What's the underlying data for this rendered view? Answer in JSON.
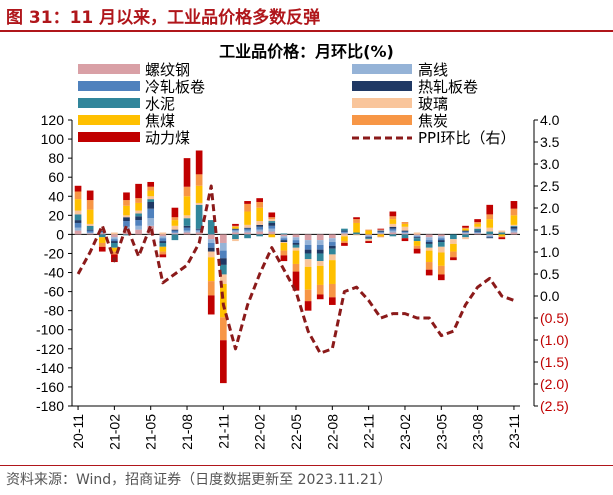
{
  "figure_title": "图 31：11 月以来，工业品价格多数反弹",
  "source_note": "资料来源：Wind，招商证券（日度数据更新至 2023.11.21）",
  "colors": {
    "header_red": "#b0161b",
    "ppi_line": "#8b1a1a",
    "neg_right_axis_text": "#c00000"
  },
  "chart_data": {
    "type": "bar",
    "stacked": true,
    "title": "工业品价格：月环比(%)",
    "x_tick_labels": [
      "20-11",
      "21-02",
      "21-05",
      "21-08",
      "21-11",
      "22-02",
      "22-05",
      "22-08",
      "22-11",
      "23-02",
      "23-05",
      "23-08",
      "23-11"
    ],
    "x_months": [
      "20-11",
      "20-12",
      "21-01",
      "21-02",
      "21-03",
      "21-04",
      "21-05",
      "21-06",
      "21-07",
      "21-08",
      "21-09",
      "21-10",
      "21-11",
      "21-12",
      "22-01",
      "22-02",
      "22-03",
      "22-04",
      "22-05",
      "22-06",
      "22-07",
      "22-08",
      "22-09",
      "22-10",
      "22-11",
      "22-12",
      "23-01",
      "23-02",
      "23-03",
      "23-04",
      "23-05",
      "23-06",
      "23-07",
      "23-08",
      "23-09",
      "23-10",
      "23-11"
    ],
    "y_left": {
      "min": -180,
      "max": 120,
      "step": 20,
      "ticks": [
        "120",
        "100",
        "80",
        "60",
        "40",
        "20",
        "0",
        "-20",
        "-40",
        "-60",
        "-80",
        "-100",
        "-120",
        "-140",
        "-160",
        "-180"
      ]
    },
    "y_right": {
      "min": -2.5,
      "max": 4.0,
      "step": 0.5,
      "ticks": [
        "4.0",
        "3.5",
        "3.0",
        "2.5",
        "2.0",
        "1.5",
        "1.0",
        "0.5",
        "0.0",
        "(0.5)",
        "(1.0)",
        "(1.5)",
        "(2.0)",
        "(2.5)"
      ]
    },
    "legend": {
      "rebar": "螺纹钢",
      "wire": "高线",
      "coldroll": "冷轧板卷",
      "hotroll": "热轧板卷",
      "cement": "水泥",
      "glass": "玻璃",
      "coke": "焦煤",
      "coking": "焦炭",
      "thermal": "动力煤",
      "ppi": "PPI环比（右）"
    },
    "series": [
      {
        "key": "rebar",
        "name": "螺纹钢",
        "color": "#d9a0a6",
        "values": [
          4,
          1,
          1,
          -3,
          4,
          5,
          9,
          -2,
          1,
          2,
          2,
          -5,
          -9,
          2,
          2,
          3,
          3,
          -2,
          -3,
          -6,
          -6,
          -4,
          1,
          0,
          -1,
          1,
          2,
          1,
          -1,
          -3,
          -2,
          0,
          1,
          1,
          -1,
          0,
          2
        ]
      },
      {
        "key": "wire",
        "name": "高线",
        "color": "#95b3d7",
        "values": [
          3,
          1,
          1,
          -2,
          4,
          4,
          8,
          -2,
          1,
          2,
          2,
          -4,
          -8,
          2,
          2,
          2,
          3,
          -2,
          -3,
          -5,
          -5,
          -4,
          1,
          0,
          -1,
          1,
          2,
          1,
          -1,
          -3,
          -2,
          0,
          1,
          1,
          -1,
          0,
          2
        ]
      },
      {
        "key": "coldroll",
        "name": "冷轧板卷",
        "color": "#4f81bd",
        "values": [
          5,
          2,
          1,
          -2,
          6,
          6,
          10,
          -3,
          2,
          3,
          1,
          -5,
          -8,
          1,
          2,
          3,
          3,
          -2,
          -3,
          -5,
          -5,
          -4,
          1,
          0,
          -1,
          1,
          2,
          1,
          -1,
          -2,
          -2,
          0,
          1,
          1,
          -1,
          0,
          2
        ]
      },
      {
        "key": "hotroll",
        "name": "热轧板卷",
        "color": "#1f3864",
        "values": [
          3,
          1,
          1,
          -2,
          4,
          4,
          7,
          -2,
          1,
          2,
          1,
          -4,
          -7,
          1,
          1,
          2,
          3,
          -2,
          -2,
          -4,
          -4,
          -3,
          1,
          0,
          -1,
          1,
          2,
          1,
          -1,
          -2,
          -2,
          0,
          1,
          1,
          -1,
          0,
          2
        ]
      },
      {
        "key": "cement",
        "name": "水泥",
        "color": "#31869b",
        "values": [
          6,
          4,
          -3,
          -5,
          -1,
          3,
          3,
          -4,
          -6,
          8,
          25,
          15,
          -10,
          -5,
          -4,
          -2,
          2,
          1,
          -3,
          -6,
          -8,
          -6,
          2,
          2,
          -1,
          0,
          -2,
          -4,
          -3,
          -4,
          -5,
          -5,
          -3,
          2,
          3,
          2,
          1
        ]
      },
      {
        "key": "glass",
        "name": "玻璃",
        "color": "#f9c59b",
        "values": [
          4,
          2,
          1,
          2,
          2,
          3,
          3,
          2,
          4,
          3,
          2,
          -6,
          -10,
          -2,
          3,
          4,
          2,
          -1,
          -3,
          -8,
          -5,
          -6,
          -2,
          -1,
          -2,
          1,
          3,
          4,
          2,
          -3,
          -6,
          -5,
          -2,
          2,
          4,
          2,
          1
        ]
      },
      {
        "key": "coke",
        "name": "焦煤",
        "color": "#ffc000",
        "values": [
          12,
          15,
          -6,
          -4,
          10,
          8,
          6,
          -5,
          6,
          20,
          18,
          -25,
          -35,
          2,
          14,
          14,
          -3,
          -8,
          -14,
          -24,
          -20,
          -25,
          -5,
          10,
          4,
          -2,
          5,
          3,
          -5,
          -12,
          -14,
          -8,
          2,
          3,
          9,
          -2,
          10
        ]
      },
      {
        "key": "coking",
        "name": "焦炭",
        "color": "#f79646",
        "values": [
          8,
          10,
          -4,
          -3,
          6,
          5,
          4,
          -3,
          3,
          10,
          12,
          -15,
          -24,
          1,
          8,
          6,
          2,
          -5,
          -8,
          -12,
          -10,
          -14,
          -2,
          4,
          1,
          -1,
          3,
          2,
          -3,
          -8,
          -9,
          -6,
          1,
          2,
          5,
          -1,
          7
        ]
      },
      {
        "key": "thermal",
        "name": "动力煤",
        "color": "#c00000",
        "values": [
          6,
          10,
          -5,
          -8,
          8,
          15,
          5,
          -3,
          10,
          30,
          25,
          -20,
          -45,
          2,
          3,
          4,
          5,
          -6,
          -20,
          -10,
          -5,
          -8,
          -3,
          2,
          -2,
          1,
          5,
          -3,
          -5,
          -6,
          -6,
          -3,
          2,
          3,
          10,
          -2,
          8
        ]
      }
    ],
    "ppi": {
      "name": "PPI环比（右）",
      "color": "#8b1a1a",
      "values": [
        0.5,
        1.0,
        1.6,
        0.8,
        1.6,
        0.9,
        1.6,
        0.3,
        0.5,
        0.7,
        1.2,
        2.5,
        -0.2,
        -1.2,
        -0.2,
        0.5,
        1.1,
        0.6,
        0.1,
        -0.8,
        -1.3,
        -1.2,
        0.1,
        0.2,
        -0.1,
        -0.5,
        -0.4,
        -0.4,
        -0.5,
        -0.5,
        -0.9,
        -0.8,
        -0.2,
        0.2,
        0.4,
        0.0,
        -0.1
      ]
    }
  }
}
